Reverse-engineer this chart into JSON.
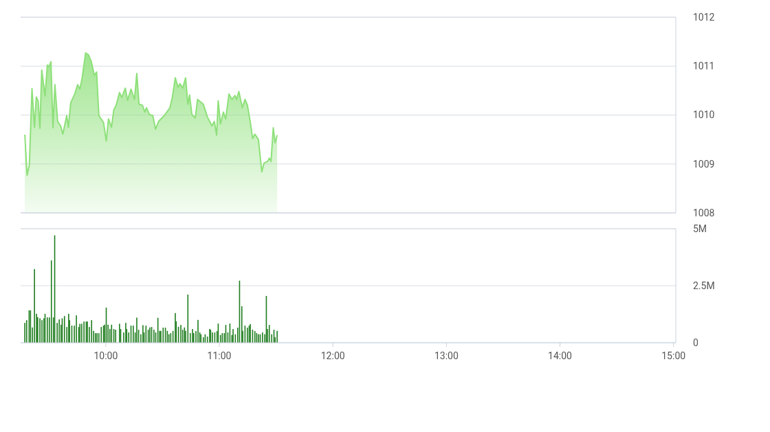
{
  "chart_data": [
    {
      "type": "area",
      "xlim": [
        9.25,
        15.02
      ],
      "ylim": [
        1008,
        1012
      ],
      "yticks": [
        1008,
        1009,
        1010,
        1011,
        1012
      ],
      "tick_labels": "y",
      "grid": "y",
      "series": [
        {
          "color": "#8ee07a",
          "x": [
            9.287,
            9.307,
            9.327,
            9.35,
            9.372,
            9.388,
            9.404,
            9.42,
            9.436,
            9.465,
            9.485,
            9.501,
            9.517,
            9.535,
            9.552,
            9.576,
            9.602,
            9.622,
            9.656,
            9.671,
            9.691,
            9.727,
            9.752,
            9.772,
            9.792,
            9.822,
            9.848,
            9.873,
            9.899,
            9.919,
            9.939,
            9.98,
            10.004,
            10.024,
            10.05,
            10.071,
            10.091,
            10.121,
            10.141,
            10.172,
            10.192,
            10.222,
            10.253,
            10.273,
            10.293,
            10.323,
            10.344,
            10.359,
            10.384,
            10.414,
            10.438,
            10.465,
            10.515,
            10.565,
            10.586,
            10.612,
            10.636,
            10.653,
            10.677,
            10.703,
            10.723,
            10.738,
            10.758,
            10.788,
            10.808,
            10.859,
            10.895,
            10.935,
            10.956,
            10.976,
            10.99,
            11.01,
            11.036,
            11.056,
            11.085,
            11.111,
            11.138,
            11.152,
            11.172,
            11.202,
            11.226,
            11.247,
            11.273,
            11.293,
            11.313,
            11.344,
            11.374,
            11.394,
            11.424,
            11.441,
            11.455,
            11.475,
            11.491,
            11.509
          ],
          "values": [
            1009.6,
            1008.77,
            1008.98,
            1010.54,
            1009.75,
            1010.37,
            1010.29,
            1009.73,
            1010.92,
            1010.39,
            1011.02,
            1010.99,
            1011.09,
            1009.74,
            1010.62,
            1009.87,
            1009.78,
            1009.61,
            1009.99,
            1009.75,
            1010.25,
            1010.43,
            1010.62,
            1010.53,
            1010.76,
            1011.27,
            1011.23,
            1011.09,
            1010.81,
            1010.88,
            1009.99,
            1009.85,
            1009.47,
            1009.92,
            1009.75,
            1010.11,
            1010.2,
            1010.46,
            1010.36,
            1010.55,
            1010.3,
            1010.53,
            1010.32,
            1010.85,
            1010.22,
            1010.2,
            1010.06,
            1010.15,
            1010.01,
            1009.99,
            1009.71,
            1009.87,
            1009.99,
            1010.15,
            1010.36,
            1010.76,
            1010.57,
            1010.64,
            1010.55,
            1010.76,
            1010.22,
            1010.41,
            1010.01,
            1009.94,
            1010.32,
            1010.22,
            1009.96,
            1009.78,
            1009.87,
            1009.59,
            1010.29,
            1009.82,
            1010.06,
            1009.92,
            1010.43,
            1010.32,
            1010.4,
            1010.32,
            1010.48,
            1010.15,
            1010.32,
            1010.2,
            1009.85,
            1009.52,
            1009.61,
            1009.5,
            1008.84,
            1009.02,
            1009.05,
            1009.12,
            1009.05,
            1009.74,
            1009.43,
            1009.59
          ]
        }
      ]
    },
    {
      "type": "bar",
      "xlim": [
        9.25,
        15.02
      ],
      "ylim": [
        0,
        5
      ],
      "yticks": [
        {
          "value": 0,
          "label": "0"
        },
        {
          "value": 2.5,
          "label": "2.5M"
        },
        {
          "value": 5,
          "label": "5M"
        }
      ],
      "xticks": [
        {
          "value": 10,
          "label": "10:00"
        },
        {
          "value": 11,
          "label": "11:00"
        },
        {
          "value": 12,
          "label": "12:00"
        },
        {
          "value": 13,
          "label": "13:00"
        },
        {
          "value": 14,
          "label": "14:00"
        },
        {
          "value": 15,
          "label": "15:00"
        }
      ],
      "grid": "y",
      "series": [
        {
          "color": "#1e7d1e",
          "x": [
            9.287,
            9.303,
            9.325,
            9.337,
            9.354,
            9.372,
            9.39,
            9.4,
            9.42,
            9.438,
            9.455,
            9.465,
            9.485,
            9.503,
            9.521,
            9.539,
            9.55,
            9.572,
            9.59,
            9.606,
            9.616,
            9.636,
            9.657,
            9.673,
            9.681,
            9.701,
            9.723,
            9.741,
            9.762,
            9.772,
            9.788,
            9.808,
            9.828,
            9.838,
            9.855,
            9.875,
            9.893,
            9.909,
            9.923,
            9.939,
            9.96,
            9.98,
            9.99,
            10.004,
            10.02,
            10.036,
            10.051,
            10.071,
            10.087,
            10.121,
            10.131,
            10.158,
            10.176,
            10.184,
            10.202,
            10.222,
            10.242,
            10.259,
            10.273,
            10.289,
            10.309,
            10.327,
            10.337,
            10.354,
            10.374,
            10.388,
            10.404,
            10.424,
            10.44,
            10.459,
            10.475,
            10.485,
            10.505,
            10.525,
            10.542,
            10.556,
            10.572,
            10.592,
            10.612,
            10.62,
            10.64,
            10.661,
            10.677,
            10.693,
            10.703,
            10.723,
            10.744,
            10.764,
            10.774,
            10.794,
            10.812,
            10.828,
            10.838,
            10.859,
            10.875,
            10.895,
            10.915,
            10.923,
            10.939,
            10.96,
            10.98,
            10.99,
            11.01,
            11.026,
            11.044,
            11.057,
            11.075,
            11.093,
            11.111,
            11.121,
            11.141,
            11.162,
            11.178,
            11.198,
            11.206,
            11.226,
            11.247,
            11.263,
            11.273,
            11.293,
            11.313,
            11.329,
            11.344,
            11.36,
            11.38,
            11.4,
            11.414,
            11.424,
            11.44,
            11.461,
            11.481,
            11.491,
            11.509
          ],
          "values": [
            0.87,
            0.99,
            1.42,
            1.42,
            0.67,
            3.23,
            1.27,
            1.12,
            1.07,
            0.99,
            1.07,
            1.27,
            1.11,
            1.11,
            3.61,
            1.11,
            4.71,
            0.87,
            1.02,
            0.79,
            1.07,
            1.17,
            0.69,
            1.27,
            0.99,
            0.75,
            0.75,
            1.2,
            0.69,
            0.83,
            0.83,
            0.93,
            0.93,
            0.93,
            0.69,
            0.99,
            0.52,
            0.42,
            0.42,
            0.42,
            0.69,
            0.75,
            0.79,
            1.54,
            0.79,
            0.6,
            0.79,
            0.6,
            0.57,
            0.83,
            0.6,
            0.45,
            0.87,
            0.6,
            0.45,
            0.75,
            0.75,
            0.45,
            1.1,
            0.57,
            0.37,
            0.77,
            0.45,
            0.75,
            0.57,
            0.67,
            0.69,
            0.57,
            0.45,
            1.09,
            0.52,
            0.52,
            0.66,
            0.66,
            0.52,
            0.37,
            0.42,
            0.52,
            1.3,
            0.94,
            0.7,
            0.78,
            0.57,
            0.67,
            0.52,
            2.11,
            0.42,
            0.6,
            0.42,
            0.51,
            1.0,
            0.45,
            0.37,
            0.24,
            0.37,
            0.27,
            0.6,
            0.57,
            0.45,
            0.45,
            0.51,
            0.84,
            0.34,
            0.42,
            0.42,
            0.78,
            0.45,
            0.84,
            0.34,
            0.6,
            0.37,
            0.66,
            2.72,
            1.6,
            0.52,
            0.75,
            0.66,
            0.75,
            0.82,
            0.57,
            0.51,
            0.42,
            0.37,
            0.37,
            0.45,
            0.37,
            2.05,
            0.6,
            0.78,
            0.37,
            0.57,
            0.24,
            0.52
          ]
        }
      ]
    }
  ]
}
